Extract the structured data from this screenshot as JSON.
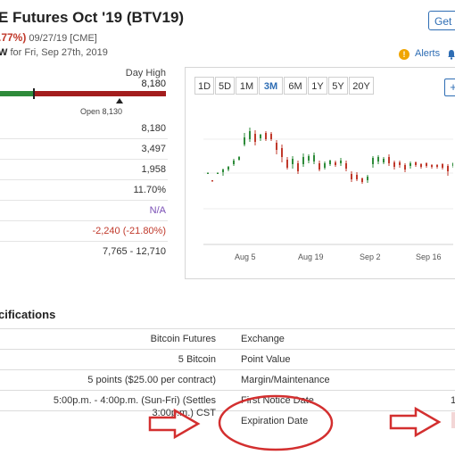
{
  "header": {
    "title": "E Futures Oct '19 (BTV19)",
    "change_pct": ".77%)",
    "date_exchange": "09/27/19 [CME]",
    "view_prefix": "W",
    "view_suffix": "for Fri, Sep 27th, 2019",
    "get_button": "Get R",
    "alerts_label": "Alerts",
    "warn_icon": "!",
    "accent_color": "#2e6db4"
  },
  "day_range": {
    "high_label": "Day High",
    "high_value": "8,180",
    "open_label": "Open 8,130"
  },
  "stats": [
    "8,180",
    "3,497",
    "1,958",
    "11.70%",
    "N/A",
    "-2,240 (-21.80%)",
    "7,765 - 12,710"
  ],
  "chart": {
    "ranges": [
      "1D",
      "5D",
      "1M",
      "3M",
      "6M",
      "1Y",
      "5Y",
      "20Y"
    ],
    "active_range": "3M",
    "plus": "+",
    "x_labels": [
      "Aug 5",
      "Aug 19",
      "Sep 2",
      "Sep 16"
    ]
  },
  "chart_data": {
    "type": "candlestick",
    "x": [
      "Aug 5",
      "Aug 19",
      "Sep 2",
      "Sep 16"
    ],
    "ohlc_note": "",
    "colors": {
      "up": "#2e8b3a",
      "down": "#c0392b"
    }
  },
  "specs": {
    "title": "cifications",
    "left": [
      "Bitcoin Futures",
      "5 Bitcoin",
      "5 points ($25.00 per contract)",
      "5:00p.m. - 4:00p.m. (Sun-Fri) (Settles",
      "3:00p.m.) CST"
    ],
    "right": [
      "Exchange",
      "Point Value",
      "Margin/Maintenance",
      "First Notice Date",
      "Expiration Date"
    ],
    "right_edge_value": "1"
  },
  "annotation_color": "#d32f2f"
}
